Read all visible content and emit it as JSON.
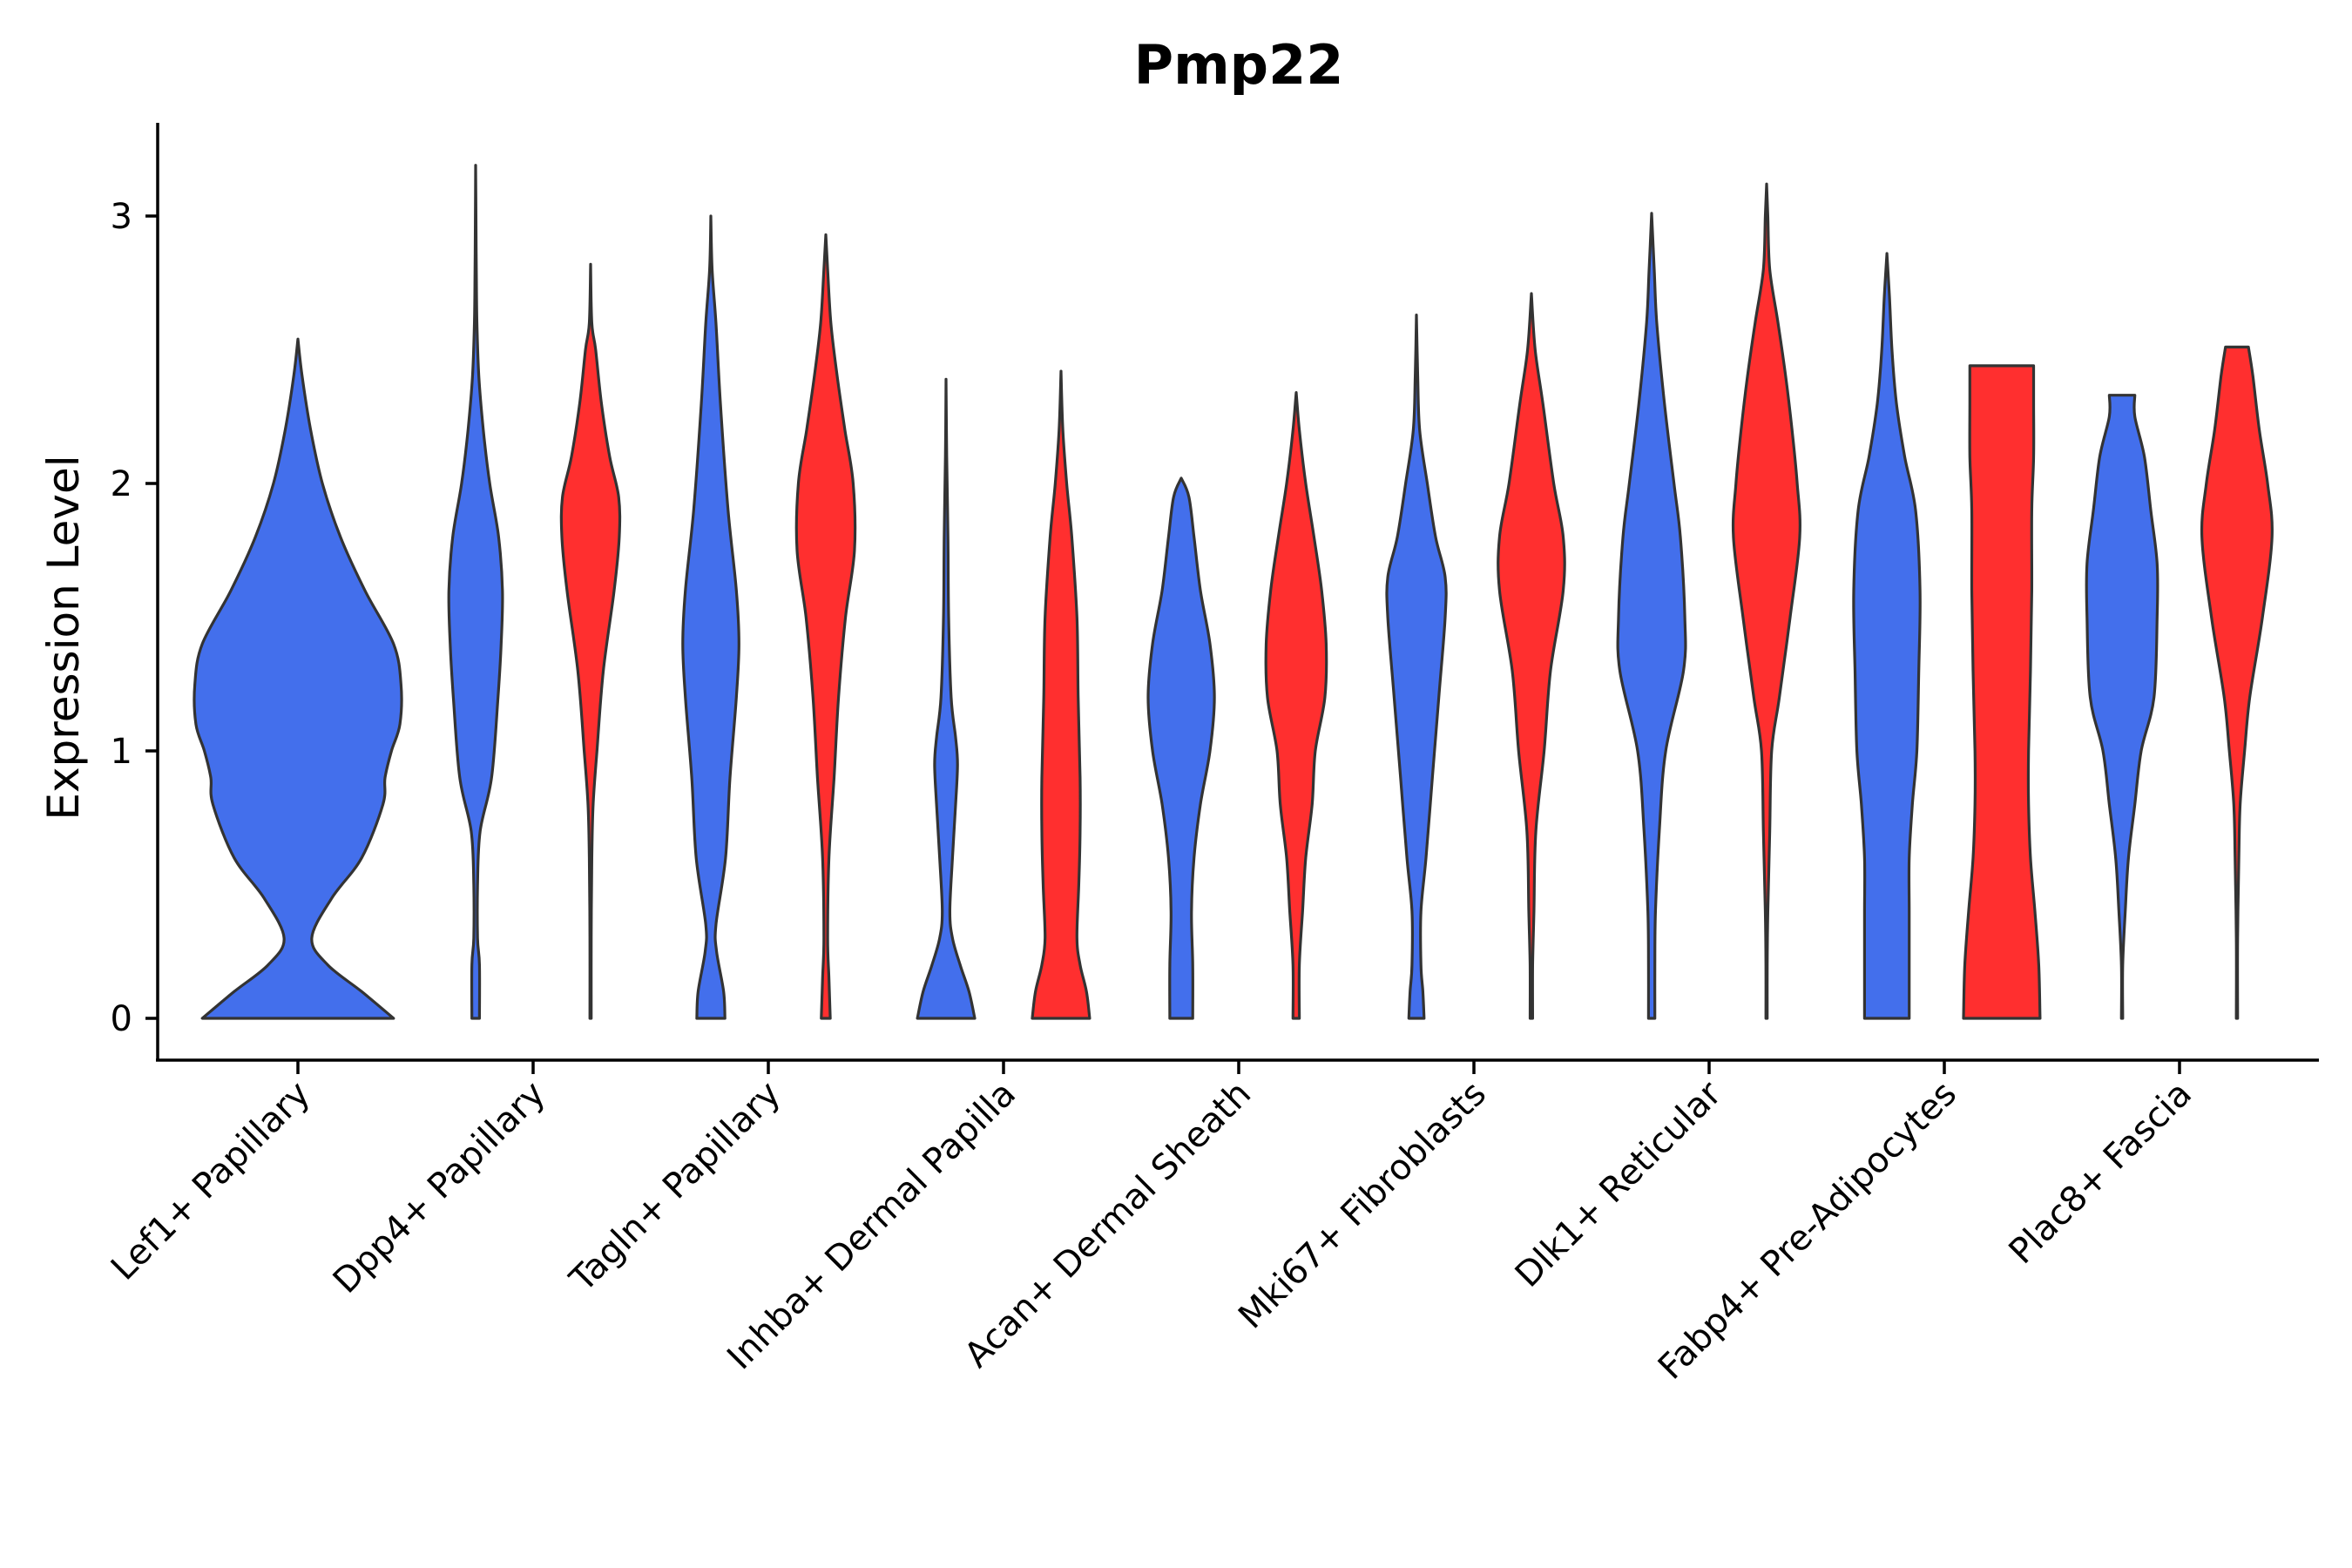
{
  "chart_data": {
    "type": "violin",
    "title": "Pmp22",
    "xlabel": "",
    "ylabel": "Expression Level",
    "ylim": [
      -0.16,
      3.35
    ],
    "yticks": [
      0,
      1,
      2,
      3
    ],
    "ytick_labels": [
      "0",
      "1",
      "2",
      "3"
    ],
    "categories": [
      "Lef1+ Papillary",
      "Dpp4+ Papillary",
      "Tagln+ Papillary",
      "Inhba+ Dermal Papilla",
      "Acan+ Dermal Sheath",
      "Mki67+ Fibroblasts",
      "Dlk1+ Reticular",
      "Fabp4+ Pre-Adipocytes",
      "Plac8+ Fascia"
    ],
    "series_colors": {
      "blue": "#436FEC",
      "red": "#FF2F2F"
    },
    "violins": [
      {
        "category": 0,
        "side": "center",
        "color": "blue",
        "ymax": 2.54,
        "profile": [
          [
            0,
            0.9
          ],
          [
            0.1,
            0.6
          ],
          [
            0.2,
            0.28
          ],
          [
            0.3,
            0.13
          ],
          [
            0.45,
            0.32
          ],
          [
            0.6,
            0.6
          ],
          [
            0.8,
            0.8
          ],
          [
            0.9,
            0.82
          ],
          [
            1.0,
            0.88
          ],
          [
            1.1,
            0.96
          ],
          [
            1.25,
            0.97
          ],
          [
            1.4,
            0.9
          ],
          [
            1.6,
            0.63
          ],
          [
            1.8,
            0.4
          ],
          [
            2.0,
            0.23
          ],
          [
            2.2,
            0.12
          ],
          [
            2.4,
            0.04
          ],
          [
            2.54,
            0.0
          ]
        ]
      },
      {
        "category": 1,
        "side": "left",
        "color": "blue",
        "ymax": 3.19,
        "profile": [
          [
            0,
            0.06
          ],
          [
            0.2,
            0.06
          ],
          [
            0.3,
            0.03
          ],
          [
            0.5,
            0.03
          ],
          [
            0.7,
            0.07
          ],
          [
            0.9,
            0.25
          ],
          [
            1.2,
            0.35
          ],
          [
            1.4,
            0.4
          ],
          [
            1.6,
            0.42
          ],
          [
            1.8,
            0.36
          ],
          [
            2.0,
            0.22
          ],
          [
            2.2,
            0.12
          ],
          [
            2.4,
            0.05
          ],
          [
            2.6,
            0.02
          ],
          [
            2.8,
            0.01
          ],
          [
            3.0,
            0.005
          ],
          [
            3.19,
            0.0
          ]
        ]
      },
      {
        "category": 1,
        "side": "right",
        "color": "red",
        "ymax": 2.82,
        "profile": [
          [
            0,
            0.01
          ],
          [
            0.3,
            0.01
          ],
          [
            0.6,
            0.02
          ],
          [
            0.8,
            0.04
          ],
          [
            1.0,
            0.1
          ],
          [
            1.3,
            0.2
          ],
          [
            1.6,
            0.37
          ],
          [
            1.8,
            0.45
          ],
          [
            1.95,
            0.44
          ],
          [
            2.1,
            0.3
          ],
          [
            2.3,
            0.17
          ],
          [
            2.5,
            0.08
          ],
          [
            2.6,
            0.02
          ],
          [
            2.82,
            0.0
          ]
        ]
      },
      {
        "category": 2,
        "side": "left",
        "color": "blue",
        "ymax": 3.0,
        "profile": [
          [
            0,
            0.22
          ],
          [
            0.1,
            0.2
          ],
          [
            0.25,
            0.09
          ],
          [
            0.35,
            0.08
          ],
          [
            0.6,
            0.23
          ],
          [
            0.9,
            0.3
          ],
          [
            1.2,
            0.4
          ],
          [
            1.4,
            0.44
          ],
          [
            1.6,
            0.4
          ],
          [
            1.9,
            0.27
          ],
          [
            2.3,
            0.15
          ],
          [
            2.6,
            0.08
          ],
          [
            2.8,
            0.02
          ],
          [
            3.0,
            0.0
          ]
        ]
      },
      {
        "category": 2,
        "side": "right",
        "color": "red",
        "ymax": 2.93,
        "profile": [
          [
            0,
            0.07
          ],
          [
            0.15,
            0.05
          ],
          [
            0.3,
            0.03
          ],
          [
            0.6,
            0.05
          ],
          [
            0.9,
            0.13
          ],
          [
            1.2,
            0.2
          ],
          [
            1.5,
            0.31
          ],
          [
            1.75,
            0.45
          ],
          [
            2.0,
            0.43
          ],
          [
            2.2,
            0.3
          ],
          [
            2.4,
            0.18
          ],
          [
            2.6,
            0.08
          ],
          [
            2.8,
            0.03
          ],
          [
            2.93,
            0.0
          ]
        ]
      },
      {
        "category": 3,
        "side": "left",
        "color": "blue",
        "ymax": 2.39,
        "profile": [
          [
            0,
            0.45
          ],
          [
            0.1,
            0.36
          ],
          [
            0.2,
            0.22
          ],
          [
            0.3,
            0.1
          ],
          [
            0.4,
            0.06
          ],
          [
            0.6,
            0.1
          ],
          [
            0.8,
            0.15
          ],
          [
            0.95,
            0.18
          ],
          [
            1.05,
            0.15
          ],
          [
            1.2,
            0.08
          ],
          [
            1.5,
            0.04
          ],
          [
            1.8,
            0.03
          ],
          [
            2.1,
            0.01
          ],
          [
            2.39,
            0.0
          ]
        ]
      },
      {
        "category": 3,
        "side": "right",
        "color": "red",
        "ymax": 2.42,
        "profile": [
          [
            0,
            0.45
          ],
          [
            0.1,
            0.4
          ],
          [
            0.2,
            0.3
          ],
          [
            0.3,
            0.25
          ],
          [
            0.5,
            0.28
          ],
          [
            0.7,
            0.3
          ],
          [
            0.9,
            0.3
          ],
          [
            1.2,
            0.27
          ],
          [
            1.5,
            0.25
          ],
          [
            1.8,
            0.17
          ],
          [
            2.0,
            0.09
          ],
          [
            2.2,
            0.03
          ],
          [
            2.42,
            0.0
          ]
        ]
      },
      {
        "category": 4,
        "side": "left",
        "color": "blue",
        "ymax": 2.02,
        "profile": [
          [
            0,
            0.18
          ],
          [
            0.2,
            0.18
          ],
          [
            0.4,
            0.16
          ],
          [
            0.6,
            0.2
          ],
          [
            0.8,
            0.3
          ],
          [
            1.0,
            0.45
          ],
          [
            1.2,
            0.52
          ],
          [
            1.4,
            0.45
          ],
          [
            1.6,
            0.3
          ],
          [
            1.8,
            0.2
          ],
          [
            1.95,
            0.12
          ],
          [
            2.02,
            0.0
          ]
        ]
      },
      {
        "category": 4,
        "side": "right",
        "color": "red",
        "ymax": 2.34,
        "profile": [
          [
            0,
            0.05
          ],
          [
            0.2,
            0.05
          ],
          [
            0.4,
            0.1
          ],
          [
            0.6,
            0.15
          ],
          [
            0.8,
            0.25
          ],
          [
            1.0,
            0.3
          ],
          [
            1.2,
            0.45
          ],
          [
            1.4,
            0.47
          ],
          [
            1.6,
            0.4
          ],
          [
            1.8,
            0.28
          ],
          [
            2.0,
            0.15
          ],
          [
            2.2,
            0.05
          ],
          [
            2.34,
            0.0
          ]
        ]
      },
      {
        "category": 5,
        "side": "left",
        "color": "blue",
        "ymax": 2.63,
        "profile": [
          [
            0,
            0.12
          ],
          [
            0.1,
            0.1
          ],
          [
            0.2,
            0.07
          ],
          [
            0.4,
            0.07
          ],
          [
            0.6,
            0.15
          ],
          [
            0.9,
            0.25
          ],
          [
            1.2,
            0.35
          ],
          [
            1.5,
            0.45
          ],
          [
            1.65,
            0.45
          ],
          [
            1.8,
            0.3
          ],
          [
            2.0,
            0.17
          ],
          [
            2.2,
            0.05
          ],
          [
            2.4,
            0.02
          ],
          [
            2.63,
            0.0
          ]
        ]
      },
      {
        "category": 5,
        "side": "right",
        "color": "red",
        "ymax": 2.71,
        "profile": [
          [
            0,
            0.02
          ],
          [
            0.2,
            0.02
          ],
          [
            0.4,
            0.04
          ],
          [
            0.7,
            0.07
          ],
          [
            1.0,
            0.2
          ],
          [
            1.3,
            0.3
          ],
          [
            1.6,
            0.5
          ],
          [
            1.8,
            0.5
          ],
          [
            2.0,
            0.35
          ],
          [
            2.3,
            0.18
          ],
          [
            2.5,
            0.06
          ],
          [
            2.71,
            0.0
          ]
        ]
      },
      {
        "category": 6,
        "side": "left",
        "color": "blue",
        "ymax": 3.01,
        "profile": [
          [
            0,
            0.05
          ],
          [
            0.2,
            0.05
          ],
          [
            0.4,
            0.06
          ],
          [
            0.7,
            0.12
          ],
          [
            1.0,
            0.22
          ],
          [
            1.3,
            0.5
          ],
          [
            1.5,
            0.52
          ],
          [
            1.8,
            0.45
          ],
          [
            2.0,
            0.35
          ],
          [
            2.3,
            0.2
          ],
          [
            2.6,
            0.08
          ],
          [
            2.8,
            0.04
          ],
          [
            3.01,
            0.0
          ]
        ]
      },
      {
        "category": 6,
        "side": "right",
        "color": "red",
        "ymax": 3.12,
        "profile": [
          [
            0,
            0.01
          ],
          [
            0.2,
            0.01
          ],
          [
            0.4,
            0.02
          ],
          [
            0.7,
            0.05
          ],
          [
            1.0,
            0.08
          ],
          [
            1.2,
            0.2
          ],
          [
            1.5,
            0.37
          ],
          [
            1.8,
            0.52
          ],
          [
            2.0,
            0.48
          ],
          [
            2.2,
            0.4
          ],
          [
            2.4,
            0.3
          ],
          [
            2.6,
            0.18
          ],
          [
            2.8,
            0.05
          ],
          [
            3.0,
            0.02
          ],
          [
            3.12,
            0.0
          ]
        ]
      },
      {
        "category": 7,
        "side": "left",
        "color": "blue",
        "ymax": 2.86,
        "profile": [
          [
            0,
            0.35
          ],
          [
            0.2,
            0.35
          ],
          [
            0.4,
            0.35
          ],
          [
            0.6,
            0.35
          ],
          [
            0.8,
            0.4
          ],
          [
            1.0,
            0.47
          ],
          [
            1.3,
            0.5
          ],
          [
            1.6,
            0.52
          ],
          [
            1.9,
            0.45
          ],
          [
            2.1,
            0.28
          ],
          [
            2.3,
            0.15
          ],
          [
            2.5,
            0.08
          ],
          [
            2.7,
            0.04
          ],
          [
            2.86,
            0.0
          ]
        ]
      },
      {
        "category": 7,
        "side": "right",
        "color": "red",
        "ymax": 2.44,
        "profile": [
          [
            0,
            0.6
          ],
          [
            0.2,
            0.58
          ],
          [
            0.4,
            0.52
          ],
          [
            0.6,
            0.45
          ],
          [
            0.8,
            0.42
          ],
          [
            1.0,
            0.42
          ],
          [
            1.3,
            0.45
          ],
          [
            1.6,
            0.47
          ],
          [
            1.9,
            0.47
          ],
          [
            2.1,
            0.5
          ],
          [
            2.3,
            0.5
          ],
          [
            2.44,
            0.5
          ]
        ]
      },
      {
        "category": 8,
        "side": "left",
        "color": "blue",
        "ymax": 2.33,
        "profile": [
          [
            0,
            0.01
          ],
          [
            0.2,
            0.01
          ],
          [
            0.4,
            0.05
          ],
          [
            0.6,
            0.1
          ],
          [
            0.8,
            0.2
          ],
          [
            1.0,
            0.3
          ],
          [
            1.2,
            0.5
          ],
          [
            1.5,
            0.55
          ],
          [
            1.7,
            0.55
          ],
          [
            1.9,
            0.45
          ],
          [
            2.1,
            0.35
          ],
          [
            2.25,
            0.2
          ],
          [
            2.33,
            0.2
          ]
        ]
      },
      {
        "category": 8,
        "side": "right",
        "color": "red",
        "ymax": 2.51,
        "profile": [
          [
            0,
            0.01
          ],
          [
            0.3,
            0.01
          ],
          [
            0.6,
            0.03
          ],
          [
            0.8,
            0.05
          ],
          [
            1.0,
            0.12
          ],
          [
            1.2,
            0.2
          ],
          [
            1.5,
            0.4
          ],
          [
            1.8,
            0.55
          ],
          [
            2.0,
            0.48
          ],
          [
            2.2,
            0.35
          ],
          [
            2.4,
            0.25
          ],
          [
            2.51,
            0.18
          ]
        ]
      }
    ]
  }
}
